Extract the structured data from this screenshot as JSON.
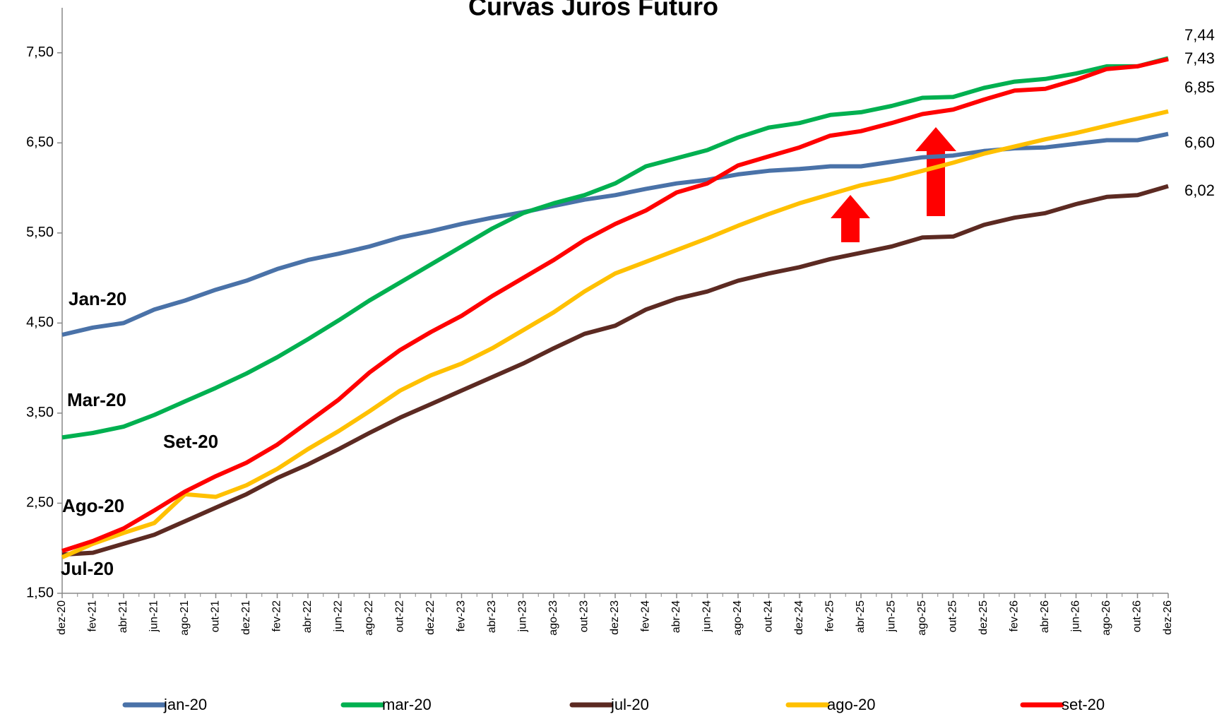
{
  "chart_data": {
    "type": "line",
    "title": "Curvas Juros Futuro",
    "categories": [
      "dez-20",
      "fev-21",
      "abr-21",
      "jun-21",
      "ago-21",
      "out-21",
      "dez-21",
      "fev-22",
      "abr-22",
      "jun-22",
      "ago-22",
      "out-22",
      "dez-22",
      "fev-23",
      "abr-23",
      "jun-23",
      "ago-23",
      "out-23",
      "dez-23",
      "fev-24",
      "abr-24",
      "jun-24",
      "ago-24",
      "out-24",
      "dez-24",
      "fev-25",
      "abr-25",
      "jun-25",
      "ago-25",
      "out-25",
      "dez-25",
      "fev-26",
      "abr-26",
      "jun-26",
      "ago-26",
      "out-26",
      "dez-26"
    ],
    "ylim": [
      1.5,
      8.0
    ],
    "yticks": [
      {
        "value": 1.5,
        "label": "1,50"
      },
      {
        "value": 2.5,
        "label": "2,50"
      },
      {
        "value": 3.5,
        "label": "3,50"
      },
      {
        "value": 4.5,
        "label": "4,50"
      },
      {
        "value": 5.5,
        "label": "5,50"
      },
      {
        "value": 6.5,
        "label": "6,50"
      },
      {
        "value": 7.5,
        "label": "7,50"
      }
    ],
    "series": [
      {
        "name": "jan-20",
        "label": "Jan-20",
        "color": "#4a72a8",
        "last_label": "6,60",
        "values": [
          4.37,
          4.45,
          4.5,
          4.65,
          4.75,
          4.87,
          4.97,
          5.1,
          5.2,
          5.27,
          5.35,
          5.45,
          5.52,
          5.6,
          5.67,
          5.73,
          5.8,
          5.87,
          5.92,
          5.99,
          6.05,
          6.09,
          6.15,
          6.19,
          6.21,
          6.24,
          6.24,
          6.29,
          6.34,
          6.36,
          6.41,
          6.44,
          6.45,
          6.49,
          6.53,
          6.53,
          6.6
        ]
      },
      {
        "name": "mar-20",
        "label": "Mar-20",
        "color": "#00b050",
        "last_label": "7,44",
        "values": [
          3.23,
          3.28,
          3.35,
          3.48,
          3.63,
          3.78,
          3.94,
          4.12,
          4.32,
          4.53,
          4.75,
          4.95,
          5.15,
          5.35,
          5.55,
          5.72,
          5.83,
          5.92,
          6.05,
          6.24,
          6.33,
          6.42,
          6.56,
          6.67,
          6.72,
          6.81,
          6.84,
          6.91,
          7.0,
          7.01,
          7.11,
          7.18,
          7.21,
          7.27,
          7.35,
          7.35,
          7.44
        ]
      },
      {
        "name": "jul-20",
        "label": "Jul-20",
        "color": "#5c2a22",
        "last_label": "6,02",
        "values": [
          1.93,
          1.95,
          2.05,
          2.15,
          2.3,
          2.45,
          2.6,
          2.78,
          2.93,
          3.1,
          3.28,
          3.45,
          3.6,
          3.75,
          3.9,
          4.05,
          4.22,
          4.38,
          4.47,
          4.65,
          4.77,
          4.85,
          4.97,
          5.05,
          5.12,
          5.21,
          5.28,
          5.35,
          5.45,
          5.46,
          5.59,
          5.67,
          5.72,
          5.82,
          5.9,
          5.92,
          6.02
        ]
      },
      {
        "name": "ago-20",
        "label": "Ago-20",
        "color": "#ffc000",
        "last_label": "6,85",
        "values": [
          1.9,
          2.05,
          2.17,
          2.28,
          2.6,
          2.57,
          2.7,
          2.88,
          3.1,
          3.3,
          3.52,
          3.75,
          3.92,
          4.05,
          4.22,
          4.42,
          4.62,
          4.85,
          5.05,
          5.18,
          5.31,
          5.44,
          5.58,
          5.71,
          5.83,
          5.93,
          6.03,
          6.1,
          6.19,
          6.28,
          6.38,
          6.46,
          6.54,
          6.61,
          6.69,
          6.77,
          6.85
        ]
      },
      {
        "name": "set-20",
        "label": "Set-20",
        "color": "#ff0000",
        "last_label": "7,43",
        "values": [
          1.97,
          2.08,
          2.22,
          2.42,
          2.63,
          2.8,
          2.95,
          3.15,
          3.4,
          3.65,
          3.95,
          4.2,
          4.4,
          4.58,
          4.8,
          5.0,
          5.2,
          5.42,
          5.6,
          5.75,
          5.95,
          6.05,
          6.25,
          6.35,
          6.45,
          6.58,
          6.63,
          6.72,
          6.82,
          6.87,
          6.98,
          7.08,
          7.1,
          7.2,
          7.32,
          7.35,
          7.43
        ]
      }
    ]
  }
}
